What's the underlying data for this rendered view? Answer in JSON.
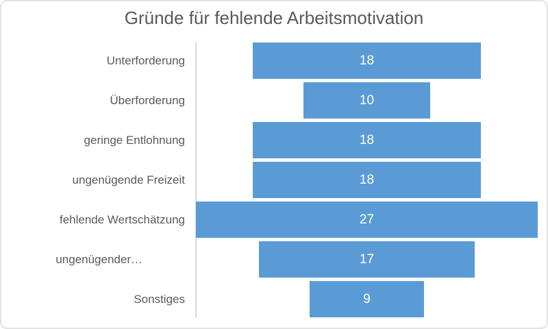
{
  "chart_data": {
    "type": "bar",
    "style": "centered-funnel",
    "orientation": "horizontal",
    "title": "Gründe für fehlende Arbeitsmotivation",
    "categories": [
      "Unterforderung",
      "Überforderung",
      "geringe Entlohnung",
      "ungenügende Freizeit",
      "fehlende Wertschätzung",
      "ungenügender…",
      "Sonstiges"
    ],
    "values": [
      18,
      10,
      18,
      18,
      27,
      17,
      9
    ],
    "data_labels": {
      "position": "center-inside",
      "color": "#ffffff"
    },
    "legend": "none",
    "gridlines": false,
    "axis": {
      "category_axis_visible": true,
      "value_axis_visible": false
    },
    "colors": {
      "bar": "#5b9bd5",
      "text": "#595959",
      "axis": "#d9d9d9",
      "background": "#ffffff"
    }
  }
}
